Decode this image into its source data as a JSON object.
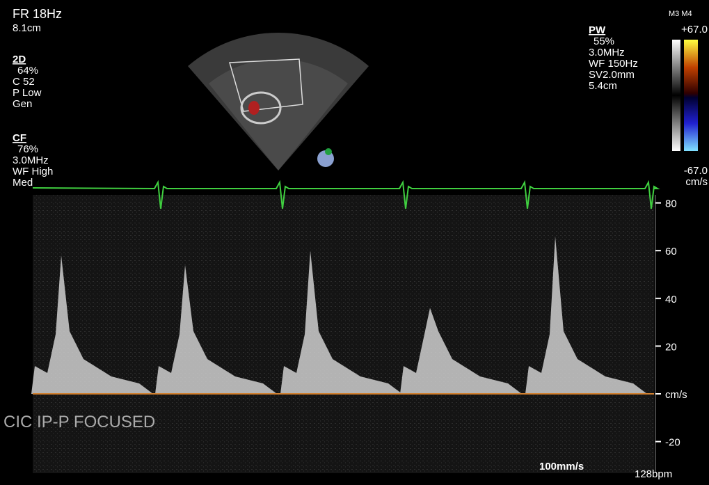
{
  "left_panel": {
    "frame_rate": "FR 18Hz",
    "depth": "8.1cm",
    "mode_2d": {
      "title": "2D",
      "gain": "64%",
      "compression": "C 52",
      "power": "P Low",
      "preset": "Gen"
    },
    "mode_cf": {
      "title": "CF",
      "gain": "76%",
      "frequency": "3.0MHz",
      "wall_filter": "WF High",
      "setting": "Med"
    }
  },
  "right_panel": {
    "title": "PW",
    "gain": "55%",
    "frequency": "3.0MHz",
    "wall_filter": "WF 150Hz",
    "sample_volume": "SV2.0mm",
    "depth": "5.4cm"
  },
  "color_bar": {
    "label": "M3 M4",
    "max": "+67.0",
    "min": "-67.0",
    "unit": "cm/s"
  },
  "velocity_scale": {
    "ticks": [
      80,
      60,
      40,
      20,
      -20
    ],
    "unit": "cm/s"
  },
  "overlay_text": "CIC IP-P FOCUSED",
  "sweep_speed": "100mm/s",
  "heart_rate": "128bpm"
}
